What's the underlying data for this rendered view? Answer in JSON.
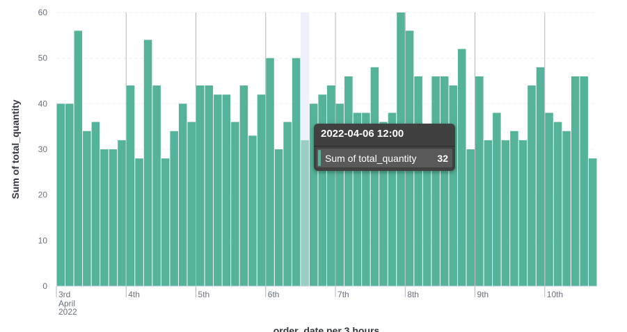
{
  "chart_data": {
    "type": "bar",
    "title": "",
    "xlabel": "order_date per 3 hours",
    "ylabel": "Sum of total_quantity",
    "ylim": [
      0,
      60
    ],
    "yticks": [
      0,
      10,
      20,
      30,
      40,
      50,
      60
    ],
    "x_tick_labels": [
      {
        "label": "3rd",
        "sublabel": [
          "April",
          "2022"
        ],
        "index": 0
      },
      {
        "label": "4th",
        "index": 8
      },
      {
        "label": "5th",
        "index": 16
      },
      {
        "label": "6th",
        "index": 24
      },
      {
        "label": "7th",
        "index": 32
      },
      {
        "label": "8th",
        "index": 40
      },
      {
        "label": "9th",
        "index": 48
      },
      {
        "label": "10th",
        "index": 56
      }
    ],
    "bar_color": "#54b399",
    "grid": true,
    "highlight_index": 28,
    "series": [
      {
        "name": "Sum of total_quantity",
        "values": [
          40,
          40,
          56,
          34,
          36,
          30,
          30,
          32,
          44,
          28,
          54,
          44,
          28,
          34,
          40,
          36,
          44,
          44,
          42,
          42,
          36,
          44,
          33,
          42,
          50,
          30,
          36,
          50,
          32,
          40,
          42,
          44,
          40,
          46,
          38,
          38,
          48,
          36,
          38,
          60,
          56,
          46,
          32,
          46,
          46,
          44,
          52,
          30,
          46,
          32,
          38,
          32,
          34,
          32,
          44,
          48,
          38,
          36,
          34,
          46,
          46,
          28
        ]
      }
    ]
  },
  "tooltip": {
    "title": "2022-04-06 12:00",
    "series_name": "Sum of total_quantity",
    "value": "32",
    "color": "#54b399"
  }
}
